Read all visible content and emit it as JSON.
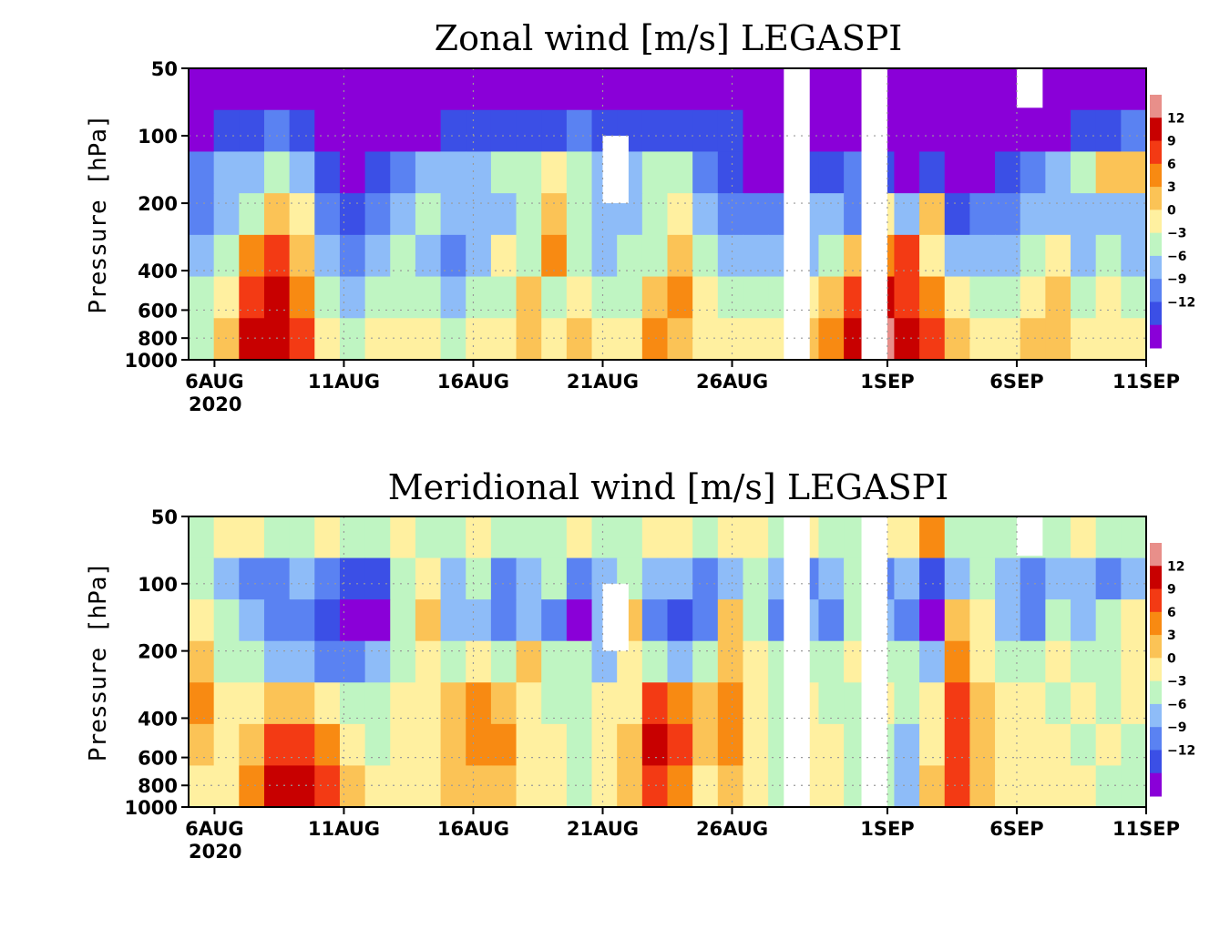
{
  "colors": {
    "levels": [
      "#8a00d8",
      "#3b4fe6",
      "#5a82f2",
      "#8ebcf8",
      "#bff5c2",
      "#fff0a0",
      "#fbc356",
      "#f88a12",
      "#f33a14",
      "#c80000",
      "#e88f8a"
    ]
  },
  "chart_data": [
    {
      "type": "heatmap",
      "title": "Zonal wind [m/s] LEGASPI",
      "ylabel": "Pressure [hPa]",
      "x_ticks": [
        "6AUG",
        "11AUG",
        "16AUG",
        "21AUG",
        "26AUG",
        "1SEP",
        "6SEP",
        "11SEP"
      ],
      "x_year": "2020",
      "y_ticks": [
        "50",
        "100",
        "200",
        "400",
        "600",
        "800",
        "1000"
      ],
      "y_scale": "log",
      "ylim": [
        1000,
        50
      ],
      "xlim": [
        "2020-08-05",
        "2020-09-11"
      ],
      "colorbar_ticks": [
        "12",
        "9",
        "6",
        "3",
        "0",
        "−3",
        "−6",
        "−9",
        "−12"
      ],
      "colorbar_levels": [
        -12,
        -9,
        -6,
        -3,
        0,
        3,
        6,
        9,
        12
      ],
      "base_grid": [
        [
          0,
          0,
          0,
          0,
          0,
          0,
          0,
          0,
          0,
          0,
          0,
          0,
          0,
          0,
          0,
          0,
          0,
          0,
          0,
          0,
          0,
          0,
          0,
          0,
          0,
          0,
          0,
          0,
          0,
          0,
          0,
          0,
          0,
          0,
          0,
          0,
          0,
          0
        ],
        [
          0,
          1,
          1,
          2,
          1,
          0,
          0,
          0,
          0,
          0,
          1,
          1,
          1,
          1,
          1,
          2,
          1,
          1,
          1,
          1,
          1,
          1,
          0,
          0,
          0,
          0,
          0,
          0,
          0,
          0,
          0,
          0,
          0,
          0,
          0,
          1,
          1,
          2
        ],
        [
          2,
          3,
          3,
          4,
          3,
          1,
          0,
          1,
          2,
          3,
          3,
          3,
          4,
          4,
          5,
          4,
          3,
          3,
          4,
          4,
          2,
          1,
          0,
          0,
          1,
          1,
          2,
          1,
          0,
          1,
          0,
          0,
          1,
          2,
          3,
          4,
          6,
          6
        ],
        [
          2,
          3,
          4,
          6,
          5,
          2,
          1,
          2,
          3,
          4,
          3,
          3,
          3,
          4,
          6,
          4,
          3,
          3,
          4,
          5,
          3,
          2,
          2,
          2,
          3,
          3,
          2,
          5,
          3,
          6,
          1,
          2,
          2,
          3,
          3,
          3,
          3,
          3
        ],
        [
          3,
          4,
          7,
          8,
          6,
          3,
          2,
          3,
          4,
          3,
          2,
          3,
          5,
          4,
          7,
          4,
          3,
          4,
          4,
          6,
          4,
          3,
          3,
          3,
          3,
          4,
          6,
          7,
          8,
          5,
          3,
          3,
          3,
          4,
          5,
          3,
          4,
          3
        ],
        [
          4,
          5,
          8,
          9,
          7,
          4,
          3,
          4,
          4,
          4,
          3,
          4,
          4,
          6,
          4,
          5,
          4,
          4,
          6,
          7,
          5,
          4,
          4,
          4,
          5,
          6,
          8,
          9,
          8,
          7,
          5,
          4,
          4,
          5,
          6,
          4,
          5,
          4
        ],
        [
          4,
          6,
          9,
          9,
          8,
          5,
          4,
          5,
          5,
          5,
          4,
          5,
          5,
          6,
          5,
          6,
          5,
          5,
          7,
          6,
          5,
          5,
          5,
          5,
          6,
          7,
          9,
          10,
          9,
          8,
          6,
          5,
          5,
          6,
          6,
          5,
          5,
          5
        ]
      ],
      "blanks": [
        [
          "2020-08-28",
          "2020-08-29",
          1000,
          50
        ],
        [
          "2020-08-31",
          "2020-09-01",
          1000,
          50
        ],
        [
          "2020-08-21",
          "2020-08-22",
          200,
          100
        ],
        [
          "2020-09-06",
          "2020-09-07",
          75,
          50
        ]
      ]
    },
    {
      "type": "heatmap",
      "title": "Meridional wind [m/s] LEGASPI",
      "ylabel": "Pressure [hPa]",
      "x_ticks": [
        "6AUG",
        "11AUG",
        "16AUG",
        "21AUG",
        "26AUG",
        "1SEP",
        "6SEP",
        "11SEP"
      ],
      "x_year": "2020",
      "y_ticks": [
        "50",
        "100",
        "200",
        "400",
        "600",
        "800",
        "1000"
      ],
      "y_scale": "log",
      "ylim": [
        1000,
        50
      ],
      "xlim": [
        "2020-08-05",
        "2020-09-11"
      ],
      "colorbar_ticks": [
        "12",
        "9",
        "6",
        "3",
        "0",
        "−3",
        "−6",
        "−9",
        "−12"
      ],
      "colorbar_levels": [
        -12,
        -9,
        -6,
        -3,
        0,
        3,
        6,
        9,
        12
      ],
      "base_grid": [
        [
          4,
          5,
          5,
          4,
          4,
          5,
          4,
          4,
          5,
          4,
          4,
          5,
          4,
          4,
          4,
          5,
          4,
          4,
          5,
          5,
          4,
          5,
          5,
          4,
          5,
          4,
          4,
          5,
          5,
          7,
          4,
          4,
          4,
          4,
          4,
          5,
          4,
          4
        ],
        [
          4,
          3,
          2,
          2,
          3,
          2,
          1,
          1,
          4,
          5,
          3,
          4,
          2,
          3,
          4,
          2,
          3,
          4,
          3,
          3,
          2,
          3,
          4,
          3,
          2,
          3,
          4,
          2,
          3,
          1,
          3,
          4,
          3,
          2,
          3,
          3,
          2,
          3
        ],
        [
          5,
          4,
          3,
          2,
          2,
          1,
          0,
          0,
          4,
          6,
          3,
          3,
          2,
          3,
          2,
          0,
          3,
          6,
          2,
          1,
          2,
          6,
          4,
          2,
          3,
          2,
          4,
          3,
          2,
          0,
          6,
          5,
          3,
          2,
          4,
          3,
          4,
          5
        ],
        [
          6,
          4,
          4,
          3,
          3,
          2,
          2,
          3,
          4,
          5,
          4,
          5,
          4,
          6,
          4,
          4,
          3,
          5,
          4,
          3,
          4,
          6,
          5,
          4,
          4,
          4,
          5,
          4,
          4,
          3,
          7,
          5,
          4,
          4,
          5,
          4,
          4,
          5
        ],
        [
          7,
          5,
          5,
          6,
          6,
          5,
          4,
          4,
          5,
          5,
          6,
          7,
          6,
          5,
          4,
          4,
          5,
          5,
          8,
          7,
          6,
          7,
          5,
          4,
          5,
          4,
          4,
          5,
          4,
          5,
          8,
          6,
          5,
          5,
          4,
          5,
          4,
          5
        ],
        [
          6,
          5,
          6,
          8,
          8,
          7,
          5,
          4,
          5,
          5,
          6,
          7,
          7,
          5,
          5,
          4,
          5,
          6,
          9,
          8,
          6,
          7,
          5,
          4,
          5,
          5,
          4,
          4,
          3,
          5,
          8,
          6,
          5,
          5,
          5,
          4,
          5,
          4
        ],
        [
          5,
          5,
          7,
          9,
          9,
          8,
          6,
          5,
          5,
          5,
          6,
          6,
          6,
          5,
          5,
          4,
          5,
          6,
          8,
          7,
          5,
          6,
          5,
          4,
          5,
          5,
          4,
          4,
          3,
          6,
          8,
          6,
          5,
          5,
          5,
          5,
          4,
          4
        ]
      ],
      "blanks": [
        [
          "2020-08-28",
          "2020-08-29",
          1000,
          50
        ],
        [
          "2020-08-31",
          "2020-09-01",
          1000,
          50
        ],
        [
          "2020-08-21",
          "2020-08-22",
          200,
          100
        ],
        [
          "2020-09-06",
          "2020-09-07",
          75,
          50
        ]
      ]
    }
  ]
}
